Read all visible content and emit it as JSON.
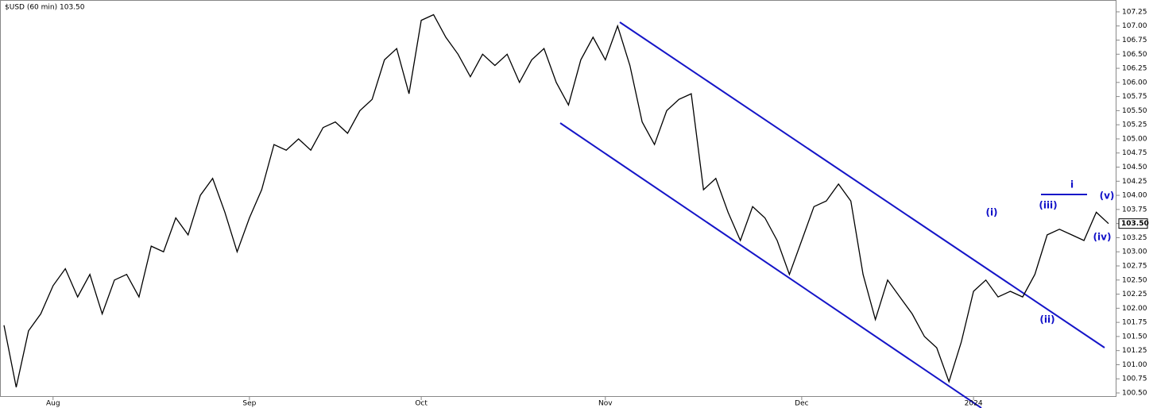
{
  "chart_data": {
    "type": "line",
    "title": "$USD (60 min) 103.50",
    "last_label": "103.50",
    "categories": [
      null,
      null,
      null,
      null,
      "Aug",
      null,
      null,
      null,
      null,
      null,
      null,
      null,
      null,
      null,
      null,
      null,
      null,
      null,
      null,
      null,
      "Sep",
      null,
      null,
      null,
      null,
      null,
      null,
      null,
      null,
      null,
      null,
      null,
      null,
      null,
      "Oct",
      null,
      null,
      null,
      null,
      null,
      null,
      null,
      null,
      null,
      null,
      null,
      null,
      null,
      null,
      "Nov",
      null,
      null,
      null,
      null,
      null,
      null,
      null,
      null,
      null,
      null,
      null,
      null,
      null,
      null,
      null,
      "Dec",
      null,
      null,
      null,
      null,
      null,
      null,
      null,
      null,
      null,
      null,
      null,
      null,
      null,
      "2024",
      null,
      null,
      null,
      null,
      null,
      null,
      null,
      null,
      null,
      null,
      null
    ],
    "series": [
      {
        "name": "$USD",
        "color": "#000000",
        "values": [
          101.7,
          100.6,
          101.6,
          101.9,
          102.4,
          102.7,
          102.2,
          102.6,
          101.9,
          102.5,
          102.6,
          102.2,
          103.1,
          103.0,
          103.6,
          103.3,
          104.0,
          104.3,
          103.7,
          103.0,
          103.6,
          104.1,
          104.9,
          104.8,
          105.0,
          104.8,
          105.2,
          105.3,
          105.1,
          105.5,
          105.7,
          106.4,
          106.6,
          105.8,
          107.1,
          107.2,
          106.8,
          106.5,
          106.1,
          106.5,
          106.3,
          106.5,
          106.0,
          106.4,
          106.6,
          106.0,
          105.6,
          106.4,
          106.8,
          106.4,
          107.0,
          106.3,
          105.3,
          104.9,
          105.5,
          105.7,
          105.8,
          104.1,
          104.3,
          103.7,
          103.2,
          103.8,
          103.6,
          103.2,
          102.6,
          103.2,
          103.8,
          103.9,
          104.2,
          103.9,
          102.6,
          101.8,
          102.5,
          102.2,
          101.9,
          101.5,
          101.3,
          100.7,
          101.4,
          102.3,
          102.5,
          102.2,
          102.3,
          102.2,
          102.6,
          103.3,
          103.4,
          103.3,
          103.2,
          103.7,
          103.5
        ]
      }
    ],
    "ylim": [
      100.43,
      107.46
    ],
    "yticks": [
      {
        "value": 100.5,
        "label": "100.50"
      },
      100.75,
      {
        "value": 101,
        "label": "101.00"
      },
      101.25,
      {
        "value": 101.5,
        "label": "101.50"
      },
      101.75,
      {
        "value": 102,
        "label": "102.00"
      },
      102.25,
      {
        "value": 102.5,
        "label": "102.50"
      },
      102.75,
      {
        "value": 103,
        "label": "103.00"
      },
      103.25,
      {
        "value": 103.5,
        "label": "103.50"
      },
      103.75,
      {
        "value": 104,
        "label": "104.00"
      },
      104.25,
      {
        "value": 104.5,
        "label": "104.50"
      },
      104.75,
      {
        "value": 105,
        "label": "105.00"
      },
      105.25,
      {
        "value": 105.5,
        "label": "105.50"
      },
      105.75,
      {
        "value": 106,
        "label": "106.00"
      },
      106.25,
      {
        "value": 106.5,
        "label": "106.50"
      },
      106.75,
      {
        "value": 107,
        "label": "107.00"
      },
      107.25
    ],
    "annotations": [
      "(i)",
      "(ii)",
      "(iii)",
      "(iv)",
      "(v)",
      "i"
    ]
  }
}
